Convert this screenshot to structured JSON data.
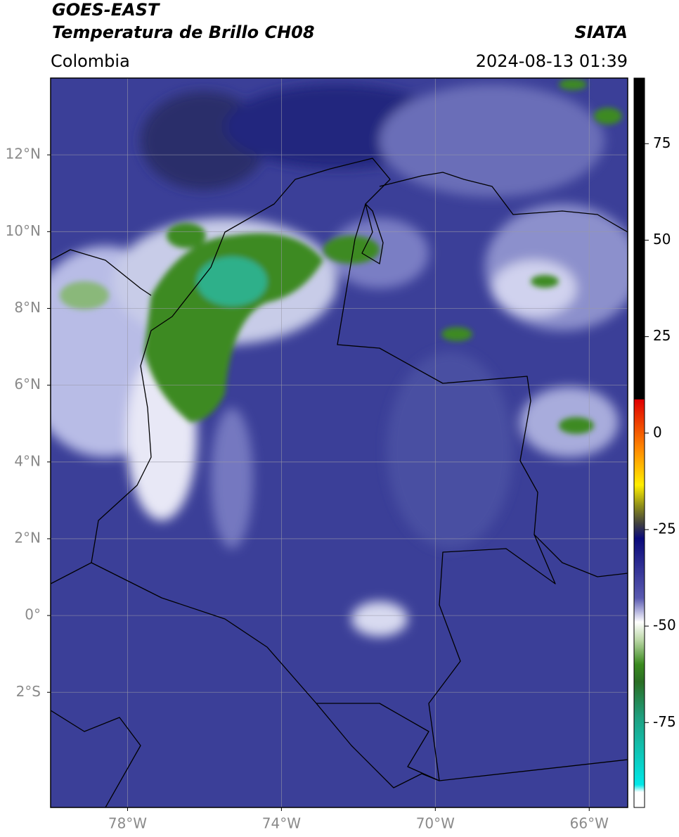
{
  "header": {
    "title": "GOES-EAST",
    "subtitle": "Temperatura de Brillo CH08",
    "source": "SIATA",
    "region": "Colombia",
    "datetime": "2024-08-13 01:39"
  },
  "map": {
    "xlim": [
      -80,
      -65
    ],
    "ylim": [
      -5,
      14
    ],
    "xticks": [
      {
        "value": -78,
        "label": "78°W"
      },
      {
        "value": -74,
        "label": "74°W"
      },
      {
        "value": -70,
        "label": "70°W"
      },
      {
        "value": -66,
        "label": "66°W"
      }
    ],
    "yticks": [
      {
        "value": 12,
        "label": "12°N"
      },
      {
        "value": 10,
        "label": "10°N"
      },
      {
        "value": 8,
        "label": "8°N"
      },
      {
        "value": 6,
        "label": "6°N"
      },
      {
        "value": 4,
        "label": "4°N"
      },
      {
        "value": 2,
        "label": "2°N"
      },
      {
        "value": 0,
        "label": "0°"
      },
      {
        "value": -2,
        "label": "2°S"
      }
    ],
    "grid": true
  },
  "colorbar": {
    "lim": [
      -97,
      92
    ],
    "ticks": [
      75,
      50,
      25,
      0,
      -25,
      -50,
      -75
    ]
  }
}
